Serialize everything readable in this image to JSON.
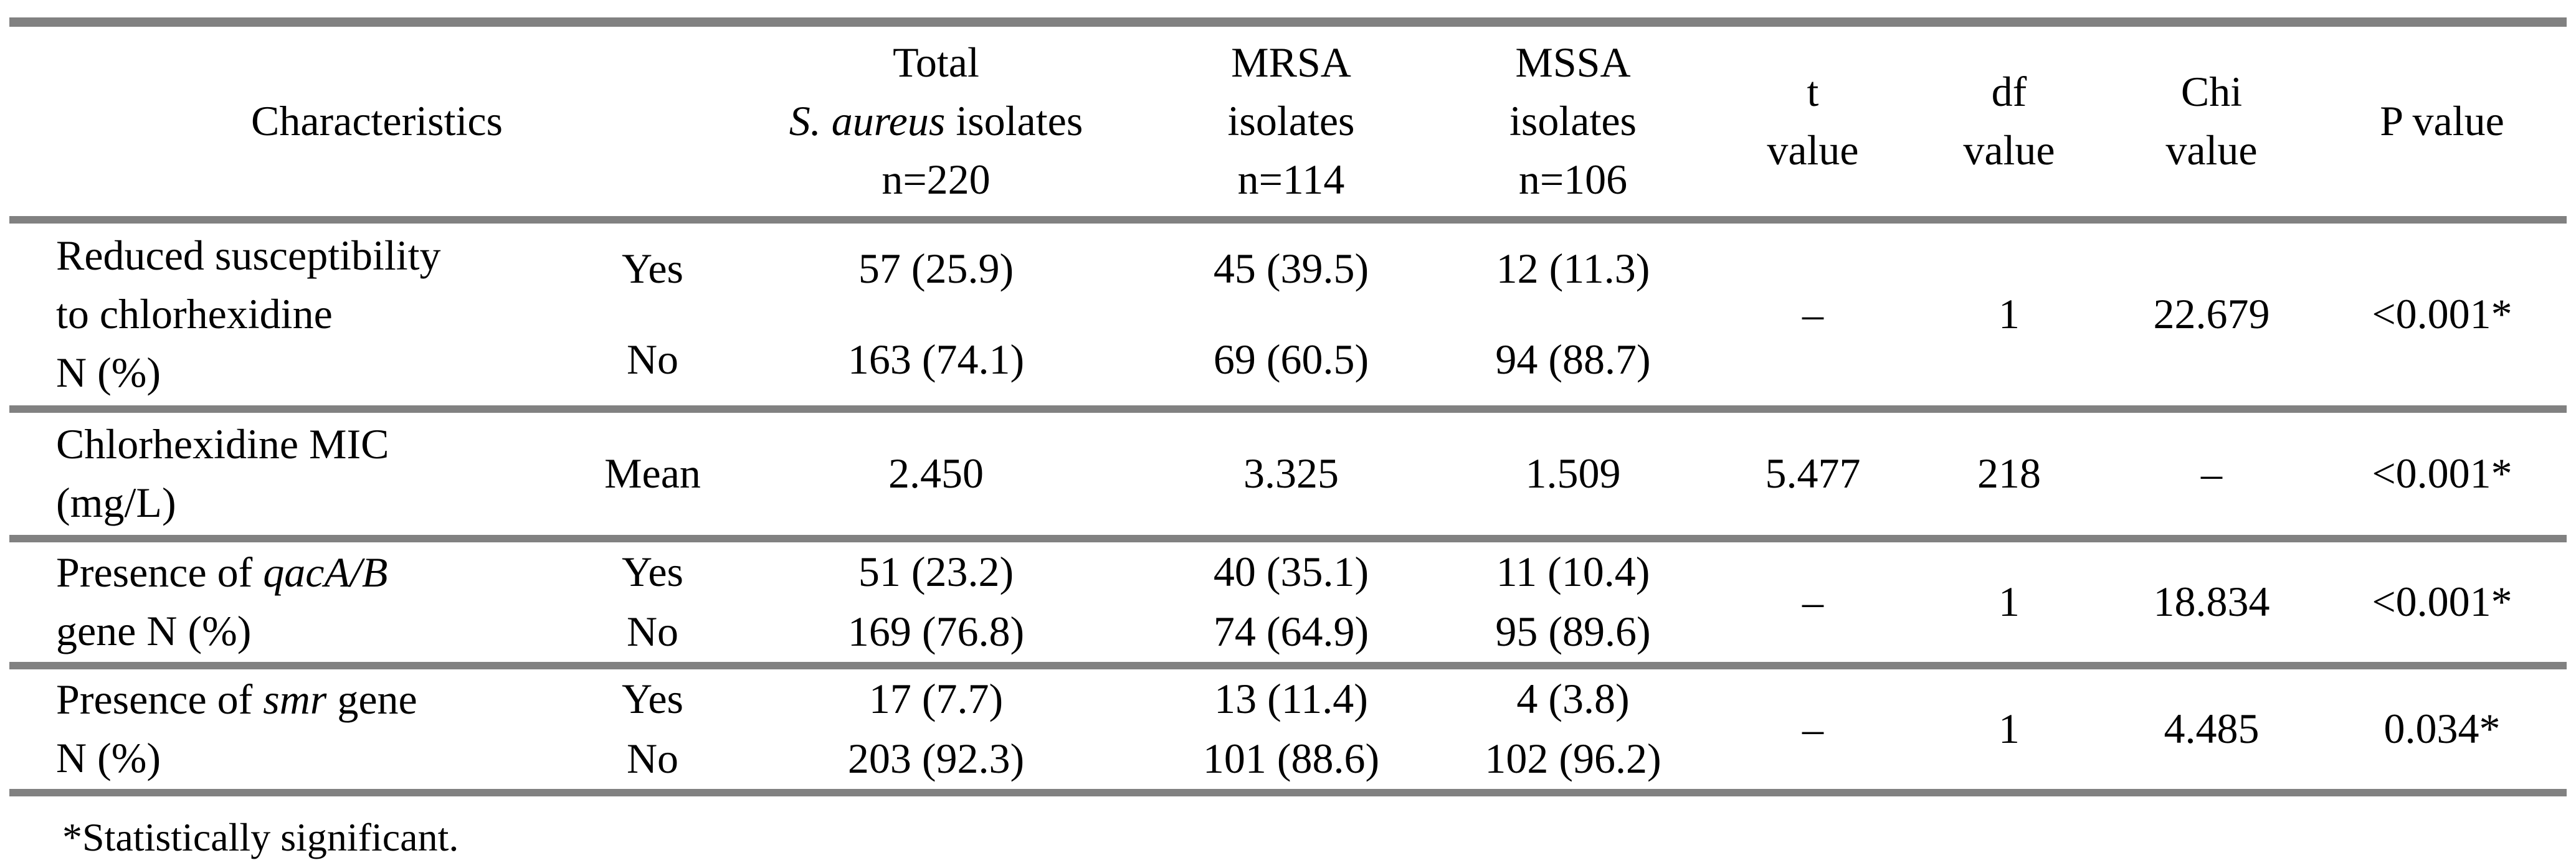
{
  "colors": {
    "rule_gray": "#818181",
    "text": "#000000",
    "background": "#ffffff"
  },
  "header": {
    "characteristics": "Characteristics",
    "total": {
      "line1": "Total",
      "line2_italic": "S. aureus",
      "line2_rest": " isolates",
      "line3": "n=220"
    },
    "mrsa": {
      "line1": "MRSA",
      "line2": "isolates",
      "line3": "n=114"
    },
    "mssa": {
      "line1": "MSSA",
      "line2": "isolates",
      "line3": "n=106"
    },
    "t": {
      "line1": "t",
      "line2": "value"
    },
    "df": {
      "line1": "df",
      "line2": "value"
    },
    "chi": {
      "line1": "Chi",
      "line2": "value"
    },
    "p": "P value"
  },
  "rows": [
    {
      "label_line1": "Reduced susceptibility",
      "label_line2": "to chlorhexidine",
      "label_line3": "N (%)",
      "sub1": "Yes",
      "sub2": "No",
      "total1": "57 (25.9)",
      "total2": "163 (74.1)",
      "mrsa1": "45 (39.5)",
      "mrsa2": "69 (60.5)",
      "mssa1": "12 (11.3)",
      "mssa2": "94 (88.7)",
      "t": "–",
      "df": "1",
      "chi": "22.679",
      "p": "<0.001*"
    },
    {
      "label_line1": "Chlorhexidine MIC",
      "label_line2": "(mg/L)",
      "sub1": "Mean",
      "total1": "2.450",
      "mrsa1": "3.325",
      "mssa1": "1.509",
      "t": "5.477",
      "df": "218",
      "chi": "–",
      "p": "<0.001*"
    },
    {
      "label_pre": "Presence of ",
      "label_italic": "qacA/B",
      "label_line2": "gene N (%)",
      "sub1": "Yes",
      "sub2": "No",
      "total1": "51 (23.2)",
      "total2": "169 (76.8)",
      "mrsa1": "40 (35.1)",
      "mrsa2": "74 (64.9)",
      "mssa1": "11 (10.4)",
      "mssa2": "95 (89.6)",
      "t": "–",
      "df": "1",
      "chi": "18.834",
      "p": "<0.001*"
    },
    {
      "label_pre": "Presence of ",
      "label_italic": "smr",
      "label_post": " gene",
      "label_line2": "N (%)",
      "sub1": "Yes",
      "sub2": "No",
      "total1": "17 (7.7)",
      "total2": "203 (92.3)",
      "mrsa1": "13 (11.4)",
      "mrsa2": "101 (88.6)",
      "mssa1": "4 (3.8)",
      "mssa2": "102 (96.2)",
      "t": "–",
      "df": "1",
      "chi": "4.485",
      "p": "0.034*"
    }
  ],
  "footnote": "*Statistically significant."
}
